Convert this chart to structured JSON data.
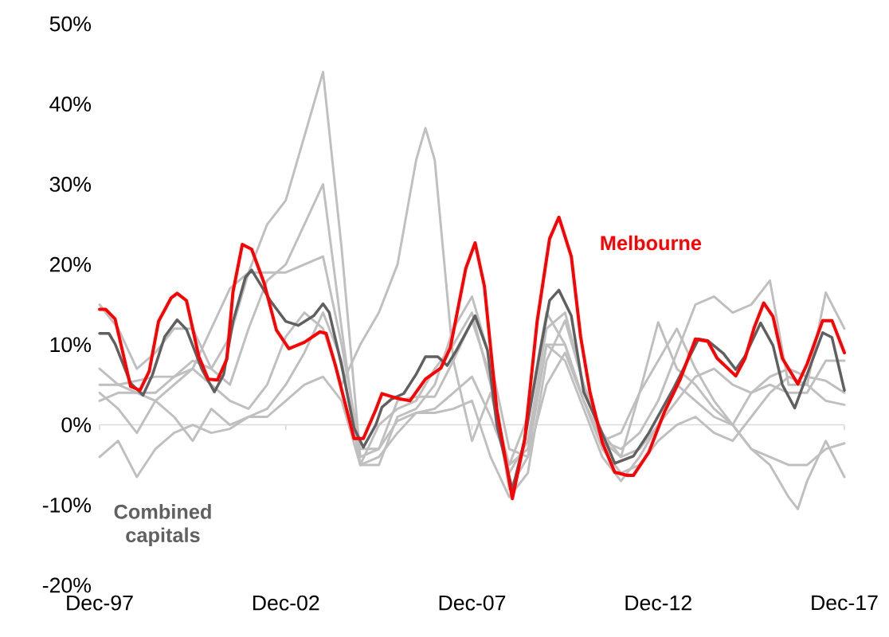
{
  "chart_data": {
    "type": "line",
    "x": [
      "1997-12",
      "1998-06",
      "1998-12",
      "1999-06",
      "1999-12",
      "2000-06",
      "2000-12",
      "2001-06",
      "2001-12",
      "2002-06",
      "2002-12",
      "2003-06",
      "2003-12",
      "2004-06",
      "2004-12",
      "2005-06",
      "2005-12",
      "2006-06",
      "2006-12",
      "2007-06",
      "2007-12",
      "2008-06",
      "2008-12",
      "2009-06",
      "2009-12",
      "2010-06",
      "2010-12",
      "2011-06",
      "2011-12",
      "2012-06",
      "2012-12",
      "2013-06",
      "2013-12",
      "2014-06",
      "2014-12",
      "2015-06",
      "2015-12",
      "2016-06",
      "2016-12",
      "2017-06",
      "2017-12"
    ],
    "xlim": [
      "1997-12",
      "2017-12"
    ],
    "xticks": [
      {
        "value": "1997-12",
        "label": "Dec-97"
      },
      {
        "value": "2002-12",
        "label": "Dec-02"
      },
      {
        "value": "2007-12",
        "label": "Dec-07"
      },
      {
        "value": "2012-12",
        "label": "Dec-12"
      },
      {
        "value": "2017-12",
        "label": "Dec-17"
      }
    ],
    "ylim": [
      -20,
      50
    ],
    "yticks": [
      {
        "value": -20,
        "label": "-20%"
      },
      {
        "value": -10,
        "label": "-10%"
      },
      {
        "value": 0,
        "label": "0%"
      },
      {
        "value": 10,
        "label": "10%"
      },
      {
        "value": 20,
        "label": "20%"
      },
      {
        "value": 30,
        "label": "30%"
      },
      {
        "value": 40,
        "label": "40%"
      },
      {
        "value": 50,
        "label": "50%"
      }
    ],
    "series": [
      {
        "color": "#bfbfbf",
        "values": [
          3,
          4,
          4,
          3,
          5,
          7,
          12,
          17,
          19,
          25,
          28,
          36,
          44,
          22,
          -4,
          -3,
          3,
          3.5,
          3.5,
          8,
          13,
          6,
          -8,
          -4,
          10,
          8,
          2,
          -4,
          -7,
          -4,
          0,
          5,
          3,
          1,
          0,
          -3,
          -4,
          -5,
          -5,
          -3,
          -2.3
        ]
      },
      {
        "color": "#bfbfbf",
        "x": [
          "1997-12",
          "1998-06",
          "1998-12",
          "1999-06",
          "1999-12",
          "2000-06",
          "2000-12",
          "2001-06",
          "2001-12",
          "2002-06",
          "2002-12",
          "2003-06",
          "2003-12",
          "2004-06",
          "2004-12",
          "2005-06",
          "2005-12",
          "2006-06",
          "2006-09",
          "2006-12",
          "2007-06",
          "2007-12",
          "2008-06",
          "2008-12",
          "2009-06",
          "2009-12",
          "2010-06",
          "2010-12",
          "2011-06",
          "2011-12",
          "2012-06",
          "2012-12",
          "2013-06",
          "2013-12",
          "2014-06",
          "2014-12",
          "2015-06",
          "2015-12",
          "2016-06",
          "2016-09",
          "2016-12",
          "2017-06",
          "2017-12"
        ],
        "values": [
          5,
          5,
          5.5,
          6,
          6,
          7,
          5,
          3,
          2,
          5,
          11,
          14,
          12,
          5,
          10,
          14,
          20,
          33,
          37,
          33,
          8,
          -2,
          4,
          -5,
          1,
          14,
          10,
          3,
          -2,
          -1,
          4,
          8,
          12,
          7,
          3,
          0,
          -3,
          -5,
          -9,
          -10.5,
          -7,
          -2,
          -6.5
        ]
      },
      {
        "color": "#bfbfbf",
        "values": [
          15,
          12,
          7,
          9,
          12,
          12,
          7,
          11,
          19,
          19,
          19,
          20,
          21,
          10,
          -3,
          -3,
          0.5,
          1.5,
          2,
          4,
          6,
          1,
          -5,
          -3,
          10,
          10,
          3,
          -2,
          -3,
          -1,
          3,
          9,
          15,
          16,
          14,
          15,
          18,
          5,
          5,
          16.5,
          12
        ]
      },
      {
        "color": "#bfbfbf",
        "values": [
          7,
          5,
          4,
          4,
          6,
          8,
          7,
          5,
          12,
          18,
          20,
          25,
          30,
          12,
          -5,
          0,
          2,
          3,
          7,
          10,
          14,
          5,
          -6,
          -2,
          12,
          14,
          5,
          -1,
          -4,
          -3,
          0,
          3,
          6,
          7,
          5,
          4,
          5,
          4,
          4,
          8,
          8
        ]
      },
      {
        "color": "#bfbfbf",
        "values": [
          4,
          2,
          -1,
          3,
          1,
          -2,
          2,
          0,
          1,
          1,
          3,
          5,
          6,
          3,
          -5,
          -5,
          1,
          2,
          5,
          12,
          16,
          8,
          -3,
          -4,
          5,
          9,
          3,
          -3,
          -6,
          -5,
          -2,
          0,
          1,
          -1,
          -2,
          1,
          4,
          6,
          5,
          3,
          2.5
        ]
      },
      {
        "color": "#bfbfbf",
        "values": [
          -4,
          -2,
          -6.5,
          -3,
          -1,
          0,
          -1,
          -0.5,
          1,
          2,
          5,
          9,
          14,
          8,
          -5,
          -4,
          -1,
          1.5,
          1.5,
          2,
          3,
          -4,
          -9,
          -6,
          8,
          13,
          5,
          -2,
          -4,
          4,
          12.8,
          7,
          5,
          2,
          0,
          4,
          6,
          7,
          6,
          5.5,
          4
        ]
      },
      {
        "name": "Combined capitals",
        "color": "#606060",
        "x": [
          "1997-12",
          "1998-03",
          "1998-05",
          "1998-10",
          "1999-02",
          "1999-05",
          "1999-09",
          "2000-01",
          "2000-04",
          "2000-09",
          "2001-01",
          "2001-04",
          "2001-07",
          "2001-11",
          "2002-01",
          "2002-07",
          "2002-12",
          "2003-04",
          "2003-09",
          "2003-12",
          "2004-02",
          "2004-06",
          "2004-10",
          "2005-01",
          "2005-05",
          "2005-07",
          "2005-10",
          "2006-02",
          "2006-06",
          "2006-09",
          "2007-01",
          "2007-04",
          "2007-07",
          "2008-01",
          "2008-05",
          "2008-08",
          "2009-01",
          "2009-05",
          "2009-10",
          "2010-01",
          "2010-04",
          "2010-08",
          "2010-12",
          "2011-06",
          "2011-10",
          "2012-04",
          "2012-09",
          "2013-05",
          "2014-01",
          "2014-04",
          "2014-09",
          "2015-01",
          "2015-04",
          "2015-09",
          "2016-01",
          "2016-04",
          "2016-08",
          "2016-12",
          "2017-05",
          "2017-08",
          "2017-12"
        ],
        "values": [
          11.4,
          11.4,
          10.1,
          5.2,
          3.7,
          6.2,
          11.0,
          13.1,
          11.9,
          6.9,
          4.1,
          6.3,
          12.9,
          18.4,
          19.3,
          15.5,
          12.9,
          12.4,
          13.6,
          15.1,
          14.0,
          7.4,
          -0.4,
          -2.8,
          0,
          2.2,
          3.2,
          3.9,
          6.3,
          8.5,
          8.5,
          7.4,
          9.3,
          13.6,
          9.3,
          0,
          -8.1,
          -1.8,
          9.3,
          15.5,
          16.8,
          13.6,
          4.1,
          -1.1,
          -4.8,
          -3.9,
          -1.0,
          4.6,
          10.7,
          10.5,
          8.9,
          6.9,
          8.6,
          12.7,
          9.9,
          5.0,
          2.1,
          6.3,
          11.5,
          10.9,
          4.3
        ]
      },
      {
        "name": "Melbourne",
        "color": "#ff0000",
        "x": [
          "1997-12",
          "1998-02",
          "1998-05",
          "1998-10",
          "1999-01",
          "1999-04",
          "1999-07",
          "1999-11",
          "2000-01",
          "2000-04",
          "2000-08",
          "2000-11",
          "2001-02",
          "2001-05",
          "2001-07",
          "2001-10",
          "2002-01",
          "2002-05",
          "2002-09",
          "2003-01",
          "2003-06",
          "2003-11",
          "2004-01",
          "2004-04",
          "2004-10",
          "2005-01",
          "2005-05",
          "2005-07",
          "2005-12",
          "2006-04",
          "2006-09",
          "2007-02",
          "2007-05",
          "2007-10",
          "2008-01",
          "2008-04",
          "2008-08",
          "2008-12",
          "2009-01",
          "2009-05",
          "2009-09",
          "2010-01",
          "2010-04",
          "2010-08",
          "2010-11",
          "2011-02",
          "2011-06",
          "2011-10",
          "2012-02",
          "2012-04",
          "2012-09",
          "2013-02",
          "2013-07",
          "2013-12",
          "2014-04",
          "2014-07",
          "2015-01",
          "2015-04",
          "2015-07",
          "2015-10",
          "2016-01",
          "2016-04",
          "2016-09",
          "2016-12",
          "2017-05",
          "2017-08",
          "2017-12"
        ],
        "values": [
          14.4,
          14.4,
          13.2,
          4.8,
          4.3,
          6.7,
          12.9,
          15.8,
          16.4,
          15.5,
          8.5,
          5.7,
          5.6,
          8.2,
          16.6,
          22.5,
          21.9,
          17.7,
          11.8,
          9.5,
          10.3,
          11.6,
          11.4,
          7.4,
          -1.7,
          -1.7,
          1.9,
          3.9,
          3.3,
          3.0,
          5.7,
          7.1,
          9.6,
          19.5,
          22.7,
          17.3,
          1.9,
          -7,
          -9.2,
          -1.8,
          12.9,
          23.2,
          25.9,
          21,
          11.0,
          4.1,
          -2.2,
          -5.9,
          -6.3,
          -6.3,
          -3.4,
          1.6,
          5.6,
          10.7,
          10.4,
          8.3,
          6.1,
          8.3,
          12.2,
          15.2,
          13.5,
          8.3,
          5.1,
          7.6,
          13.0,
          13.0,
          9.0
        ]
      }
    ]
  }
}
